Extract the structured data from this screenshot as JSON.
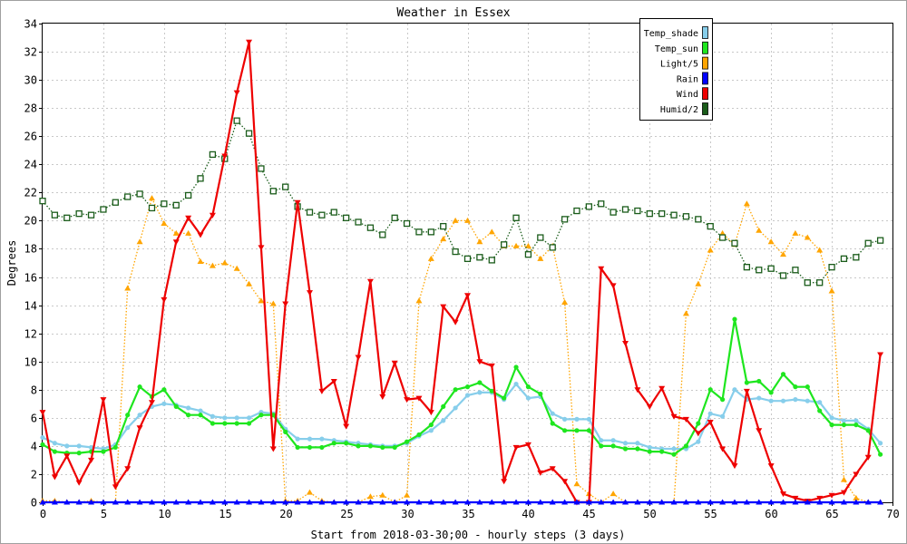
{
  "chart_data": {
    "type": "line",
    "title": "Weather in Essex",
    "xlabel": "Start from 2018-03-30;00 - hourly steps (3 days)",
    "ylabel": "Degrees",
    "xlim": [
      0,
      70
    ],
    "ylim": [
      0,
      34
    ],
    "x_ticks": [
      0,
      5,
      10,
      15,
      20,
      25,
      30,
      35,
      40,
      45,
      50,
      55,
      60,
      65,
      70
    ],
    "y_ticks": [
      0,
      2,
      4,
      6,
      8,
      10,
      12,
      14,
      16,
      18,
      20,
      22,
      24,
      26,
      28,
      30,
      32,
      34
    ],
    "grid": true,
    "legend_position": "top-right",
    "x": [
      0,
      1,
      2,
      3,
      4,
      5,
      6,
      7,
      8,
      9,
      10,
      11,
      12,
      13,
      14,
      15,
      16,
      17,
      18,
      19,
      20,
      21,
      22,
      23,
      24,
      25,
      26,
      27,
      28,
      29,
      30,
      31,
      32,
      33,
      34,
      35,
      36,
      37,
      38,
      39,
      40,
      41,
      42,
      43,
      44,
      45,
      46,
      47,
      48,
      49,
      50,
      51,
      52,
      53,
      54,
      55,
      56,
      57,
      58,
      59,
      60,
      61,
      62,
      63,
      64,
      65,
      66,
      67,
      68,
      69
    ],
    "series": [
      {
        "name": "Temp_shade",
        "color": "#87ceeb",
        "marker": "circle",
        "line": "solid",
        "values": [
          4.6,
          4.2,
          4.0,
          4.0,
          3.9,
          3.8,
          4.1,
          5.3,
          6.2,
          6.8,
          7.0,
          6.9,
          6.7,
          6.5,
          6.1,
          6.0,
          6.0,
          6.0,
          6.4,
          6.3,
          5.2,
          4.5,
          4.5,
          4.5,
          4.4,
          4.3,
          4.2,
          4.1,
          4.0,
          4.0,
          4.2,
          4.7,
          5.1,
          5.8,
          6.7,
          7.6,
          7.8,
          7.8,
          7.3,
          8.4,
          7.4,
          7.5,
          6.3,
          5.9,
          5.9,
          5.9,
          4.4,
          4.4,
          4.2,
          4.2,
          3.9,
          3.8,
          3.8,
          3.8,
          4.3,
          6.3,
          6.1,
          8.0,
          7.3,
          7.4,
          7.2,
          7.2,
          7.3,
          7.2,
          7.1,
          6.0,
          5.8,
          5.8,
          5.2,
          4.2
        ]
      },
      {
        "name": "Temp_sun",
        "color": "#1ee61e",
        "marker": "circle",
        "line": "solid",
        "values": [
          4.1,
          3.6,
          3.5,
          3.5,
          3.6,
          3.6,
          3.9,
          6.2,
          8.2,
          7.5,
          8.0,
          6.8,
          6.2,
          6.2,
          5.6,
          5.6,
          5.6,
          5.6,
          6.2,
          6.2,
          5.0,
          3.9,
          3.9,
          3.9,
          4.2,
          4.2,
          4.0,
          4.0,
          3.9,
          3.9,
          4.3,
          4.8,
          5.5,
          6.8,
          8.0,
          8.2,
          8.5,
          7.9,
          7.4,
          9.6,
          8.2,
          7.7,
          5.6,
          5.1,
          5.1,
          5.1,
          4.0,
          4.0,
          3.8,
          3.8,
          3.6,
          3.6,
          3.4,
          4.0,
          5.6,
          8.0,
          7.3,
          13.0,
          8.5,
          8.6,
          7.8,
          9.1,
          8.2,
          8.2,
          6.5,
          5.5,
          5.5,
          5.5,
          5.1,
          3.4
        ]
      },
      {
        "name": "Light/5",
        "color": "#ffa500",
        "marker": "triangle-up",
        "line": "dotted",
        "values": [
          0.1,
          0.1,
          0.0,
          0.0,
          0.1,
          0.0,
          0.0,
          15.2,
          18.5,
          21.6,
          19.8,
          19.1,
          19.1,
          17.1,
          16.8,
          17.0,
          16.6,
          15.5,
          14.3,
          14.1,
          0.1,
          0.1,
          0.7,
          0.1,
          0.0,
          0.0,
          0.0,
          0.4,
          0.5,
          0.0,
          0.5,
          14.3,
          17.3,
          18.7,
          20.0,
          20.0,
          18.5,
          19.2,
          18.2,
          18.2,
          18.2,
          17.3,
          18.2,
          14.2,
          1.3,
          0.6,
          0.0,
          0.6,
          0.0,
          0.0,
          0.0,
          0.0,
          0.0,
          13.4,
          15.5,
          17.9,
          19.1,
          18.3,
          21.2,
          19.3,
          18.5,
          17.6,
          19.1,
          18.8,
          17.9,
          15.0,
          1.6,
          0.3,
          0.0,
          0.0
        ]
      },
      {
        "name": "Rain",
        "color": "#0000ff",
        "marker": "triangle-up",
        "line": "solid",
        "values": [
          0,
          0,
          0,
          0,
          0,
          0,
          0,
          0,
          0,
          0,
          0,
          0,
          0,
          0,
          0,
          0,
          0,
          0,
          0,
          0,
          0,
          0,
          0,
          0,
          0,
          0,
          0,
          0,
          0,
          0,
          0,
          0,
          0,
          0,
          0,
          0,
          0,
          0,
          0,
          0,
          0,
          0,
          0,
          0,
          0,
          0,
          0,
          0,
          0,
          0,
          0,
          0,
          0,
          0,
          0,
          0,
          0,
          0,
          0,
          0,
          0,
          0,
          0,
          0,
          0,
          0,
          0,
          0,
          0,
          0
        ]
      },
      {
        "name": "Wind",
        "color": "#ee0000",
        "marker": "triangle-down",
        "line": "solid",
        "values": [
          6.4,
          1.8,
          3.3,
          1.4,
          3.0,
          7.3,
          1.1,
          2.4,
          5.3,
          7.1,
          14.4,
          18.5,
          20.2,
          19.0,
          20.4,
          24.6,
          29.1,
          32.7,
          18.1,
          3.8,
          14.1,
          21.3,
          14.9,
          7.9,
          8.6,
          5.4,
          10.3,
          15.7,
          7.5,
          9.9,
          7.3,
          7.4,
          6.4,
          13.9,
          12.8,
          14.7,
          10.0,
          9.7,
          1.5,
          3.9,
          4.1,
          2.1,
          2.4,
          1.5,
          0.0,
          0.0,
          16.6,
          15.4,
          11.3,
          8.0,
          6.8,
          8.1,
          6.1,
          5.9,
          4.9,
          5.7,
          3.8,
          2.6,
          7.9,
          5.1,
          2.6,
          0.6,
          0.3,
          0.1,
          0.3,
          0.5,
          0.7,
          2.0,
          3.2,
          10.5
        ]
      },
      {
        "name": "Humid/2",
        "color": "#1a5c1a",
        "marker": "square",
        "line": "dotted",
        "values": [
          21.4,
          20.4,
          20.2,
          20.5,
          20.4,
          20.8,
          21.3,
          21.7,
          21.9,
          20.9,
          21.2,
          21.1,
          21.8,
          23.0,
          24.7,
          24.4,
          27.1,
          26.2,
          23.7,
          22.1,
          22.4,
          21.0,
          20.6,
          20.4,
          20.6,
          20.2,
          19.9,
          19.5,
          19.0,
          20.2,
          19.8,
          19.2,
          19.2,
          19.6,
          17.8,
          17.3,
          17.4,
          17.2,
          18.3,
          20.2,
          17.6,
          18.8,
          18.1,
          20.1,
          20.7,
          21.0,
          21.2,
          20.6,
          20.8,
          20.7,
          20.5,
          20.5,
          20.4,
          20.3,
          20.1,
          19.6,
          18.8,
          18.4,
          16.7,
          16.5,
          16.6,
          16.1,
          16.5,
          15.6,
          15.6,
          16.7,
          17.3,
          17.4,
          18.4,
          18.6
        ]
      }
    ]
  }
}
